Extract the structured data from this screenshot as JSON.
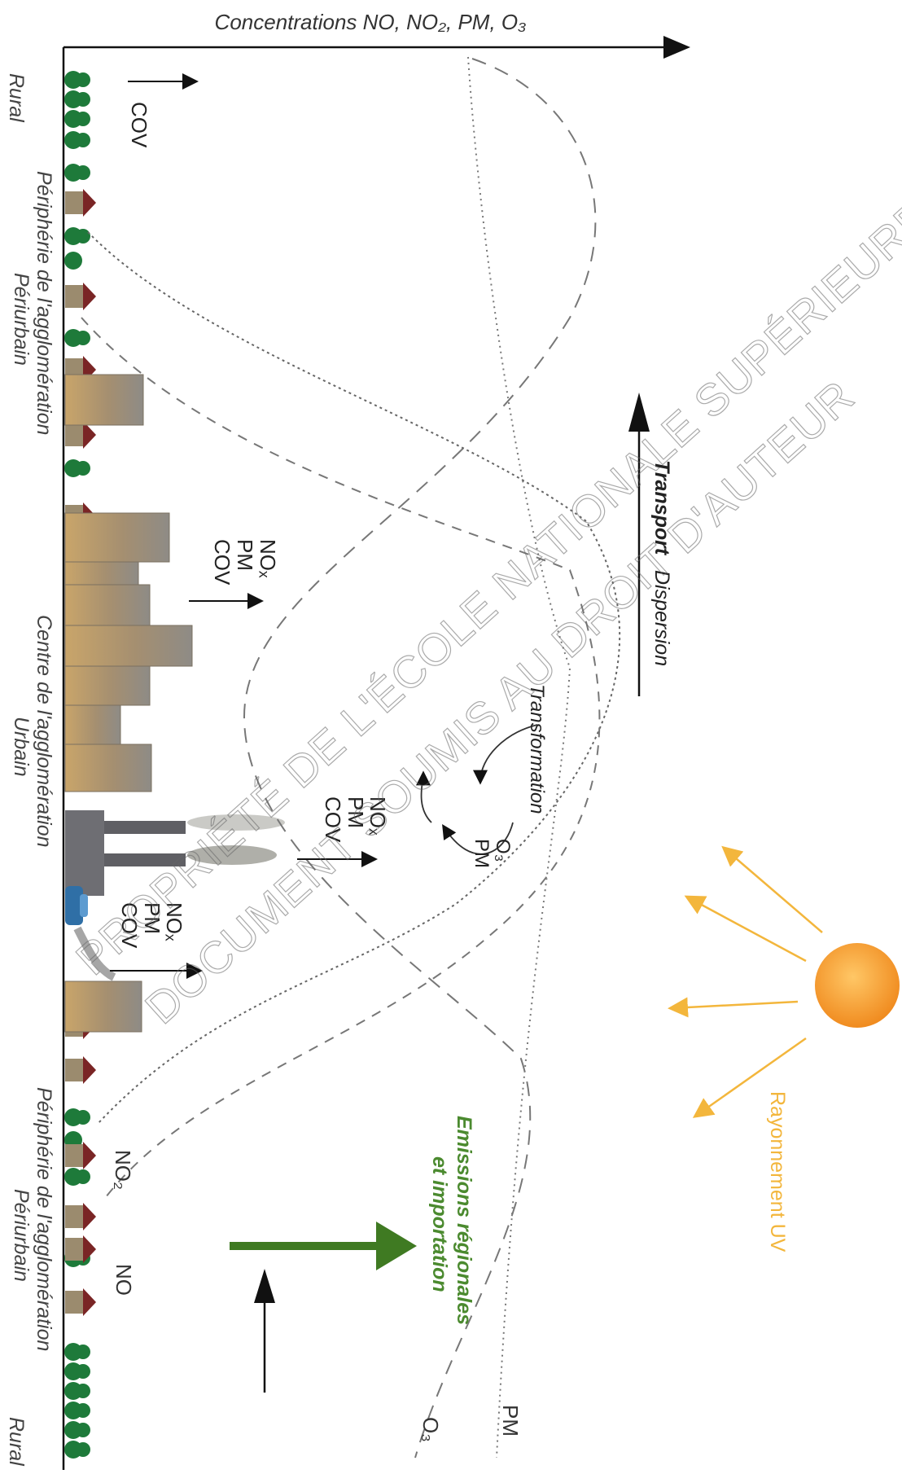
{
  "axis": {
    "concentrations_label": "Concentrations NO, NO₂, PM, O₃"
  },
  "zones": {
    "rural_left": "Rural",
    "peripherie_1": "Périphérie de l'agglomération",
    "periurbain_1": "Périurbain",
    "centre": "Centre de l'agglomération",
    "urbain": "Urbain",
    "peripherie_2": "Périphérie de l'agglomération",
    "periurbain_2": "Périurbain",
    "rural_right": "Rural"
  },
  "emissions": {
    "cov_rural": "COV",
    "city_nox": "NOₓ",
    "city_pm": "PM",
    "city_cov": "COV",
    "factory_nox": "NOₓ",
    "factory_pm": "PM",
    "factory_cov": "COV",
    "car_nox": "NOₓ",
    "car_pm": "PM",
    "car_cov": "COV"
  },
  "processes": {
    "transport": "Transport",
    "dispersion": "Dispersion",
    "transformation": "Transformation",
    "products_o3": "O₃",
    "products_pm": "PM",
    "regional_line1": "Emissions régionales",
    "regional_line2": "et importation",
    "uv": "Rayonnement UV"
  },
  "curves": {
    "pm": "PM",
    "o3": "O₃",
    "no2": "NO₂",
    "no": "NO"
  },
  "watermark": {
    "line1": "PROPRIÉTÉ DE L'ÉCOLE NATIONALE SUPÉRIEURE D'ARCHITECTURE DE NANTES",
    "line2": "DOCUMENT SOUMIS AU DROIT D'AUTEUR"
  },
  "colors": {
    "regional_arrow": "#3f7a22",
    "regional_text": "#4b8a2f",
    "uv": "#f3b63c",
    "sun": "#f39a2e",
    "building": "#9b8b6e",
    "tree": "#1e7a3a",
    "roof": "#7a2525"
  }
}
